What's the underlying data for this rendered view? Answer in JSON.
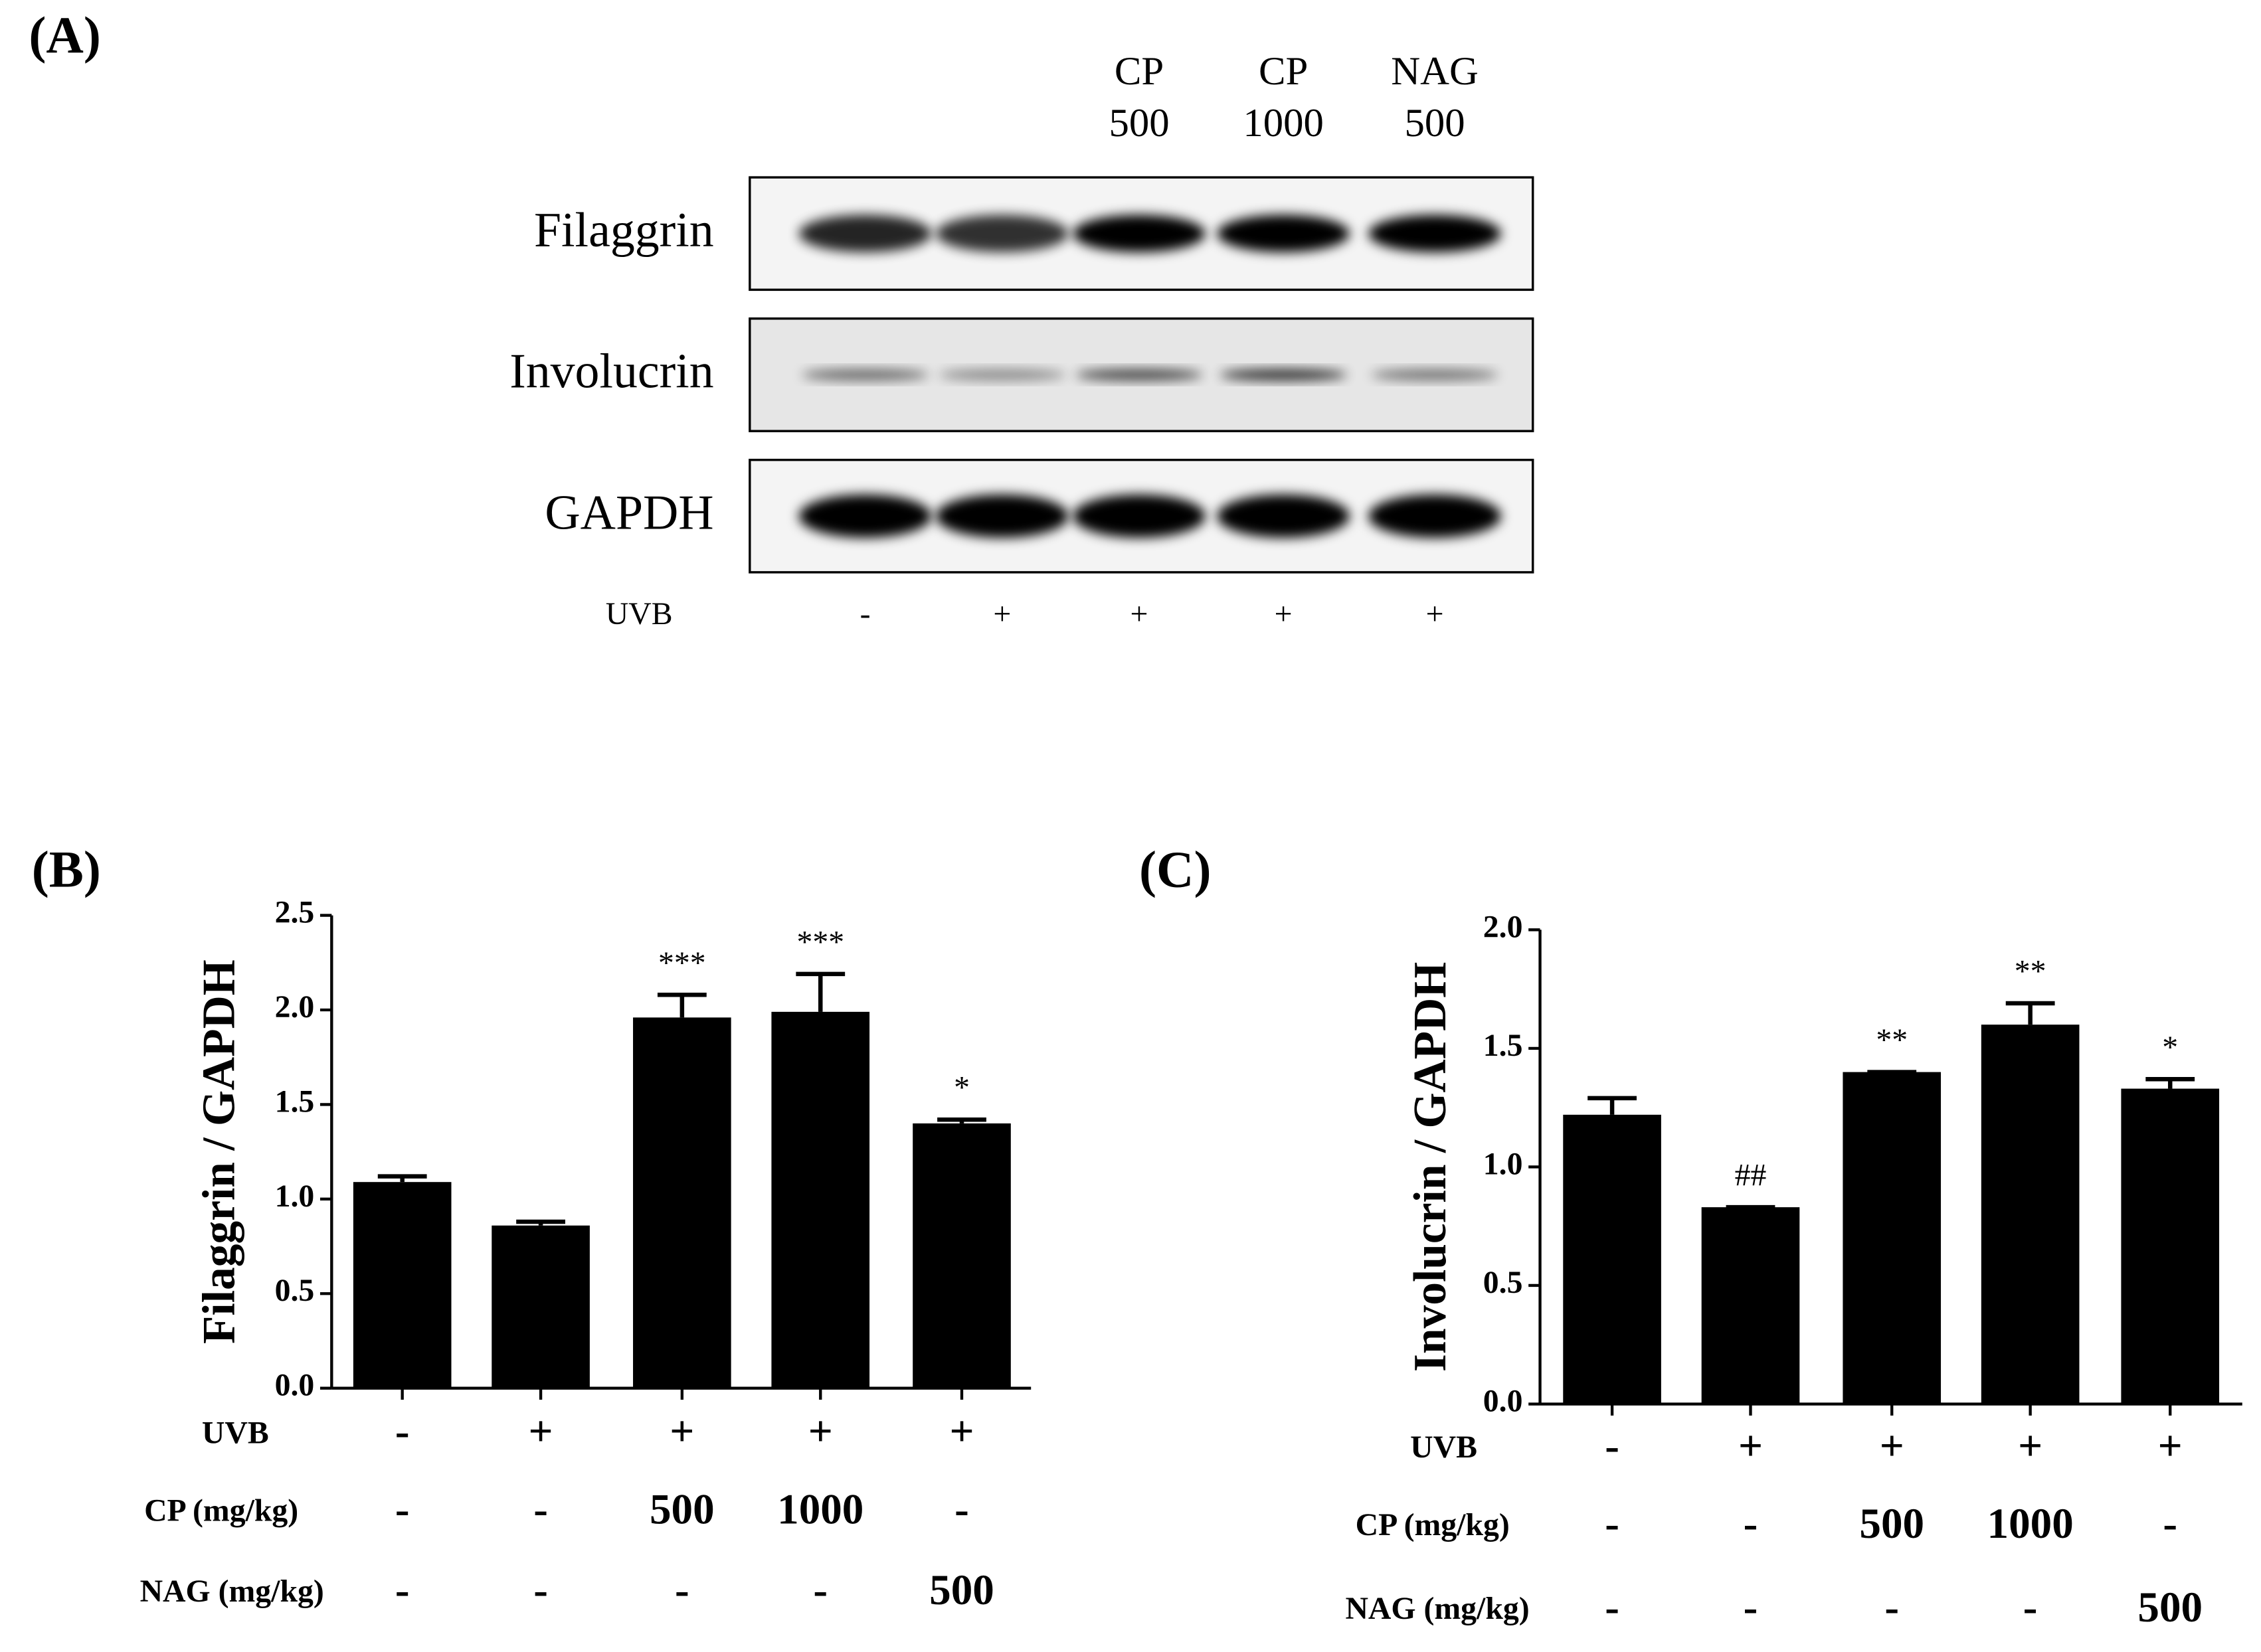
{
  "figure_label": "(A)",
  "blot": {
    "lane_headers": [
      [
        "CP",
        "500"
      ],
      [
        "CP",
        "1000"
      ],
      [
        "NAG",
        "500"
      ]
    ],
    "rows": [
      "Filaggrin",
      "Involucrin",
      "GAPDH"
    ],
    "treatment": {
      "label": "UVB",
      "values": [
        "-",
        "+",
        "+",
        "+",
        "+"
      ]
    }
  },
  "chart_data": [
    {
      "type": "bar",
      "title": "(B)",
      "ylabel": "Filaggrin  / GAPDH",
      "values": [
        1.09,
        0.86,
        1.96,
        1.99,
        1.4
      ],
      "errors": [
        0.03,
        0.02,
        0.12,
        0.2,
        0.02
      ],
      "annotations": [
        null,
        null,
        "***",
        "***",
        "*"
      ],
      "color": "#000000",
      "ylim": [
        0,
        2.5
      ],
      "yticks": [
        {
          "value": 0,
          "label": "0.0"
        },
        {
          "value": 0.5,
          "label": "0.5"
        },
        {
          "value": 1,
          "label": "1.0"
        },
        {
          "value": 1.5,
          "label": "1.5"
        },
        {
          "value": 2,
          "label": "2.0"
        },
        {
          "value": 2.5,
          "label": "2.5"
        }
      ],
      "treatments": [
        {
          "label": "UVB",
          "values": [
            "-",
            "+",
            "+",
            "+",
            "+"
          ]
        },
        {
          "label": "CP (mg/kg)",
          "values": [
            "-",
            "-",
            "500",
            "1000",
            "-"
          ]
        },
        {
          "label": "NAG (mg/kg)",
          "values": [
            "-",
            "-",
            "-",
            "-",
            "500"
          ]
        }
      ]
    },
    {
      "type": "bar",
      "title": "(C)",
      "ylabel": "Involucrin  / GAPDH",
      "values": [
        1.22,
        0.83,
        1.4,
        1.6,
        1.33
      ],
      "errors": [
        0.07,
        0,
        0,
        0.09,
        0.04
      ],
      "annotations": [
        null,
        "##",
        "**",
        "**",
        "*"
      ],
      "color": "#000000",
      "ylim": [
        0,
        2.0
      ],
      "yticks": [
        {
          "value": 0,
          "label": "0.0"
        },
        {
          "value": 0.5,
          "label": "0.5"
        },
        {
          "value": 1,
          "label": "1.0"
        },
        {
          "value": 1.5,
          "label": "1.5"
        },
        {
          "value": 2,
          "label": "2.0"
        }
      ],
      "treatments": [
        {
          "label": "UVB",
          "values": [
            "-",
            "+",
            "+",
            "+",
            "+"
          ]
        },
        {
          "label": "CP (mg/kg)",
          "values": [
            "-",
            "-",
            "500",
            "1000",
            "-"
          ]
        },
        {
          "label": "NAG (mg/kg)",
          "values": [
            "-",
            "-",
            "-",
            "-",
            "500"
          ]
        }
      ]
    }
  ]
}
